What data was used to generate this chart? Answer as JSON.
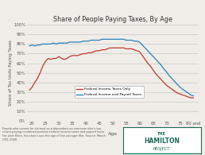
{
  "title": "Share of People Paying Taxes, By Age",
  "xlabel": "Age",
  "ylabel": "Share of Tax Units Paying Taxes",
  "x_ticks": [
    20,
    25,
    30,
    35,
    40,
    45,
    50,
    55,
    60,
    65,
    70,
    75,
    80
  ],
  "x_tick_labels": [
    "20",
    "25",
    "30",
    "35",
    "40",
    "45",
    "50",
    "55",
    "60",
    "65",
    "70",
    "75",
    "80 and\nolder"
  ],
  "ylim": [
    0,
    100
  ],
  "y_ticks": [
    0,
    10,
    20,
    30,
    40,
    50,
    60,
    70,
    80,
    90,
    100
  ],
  "y_tick_labels": [
    "0%",
    "10%",
    "20%",
    "30%",
    "40%",
    "50%",
    "60%",
    "70%",
    "80%",
    "90%",
    "100%"
  ],
  "federal_income_x": [
    19,
    20,
    21,
    22,
    23,
    24,
    25,
    26,
    27,
    28,
    29,
    30,
    31,
    32,
    33,
    34,
    35,
    36,
    37,
    38,
    39,
    40,
    41,
    42,
    43,
    44,
    45,
    46,
    47,
    48,
    49,
    50,
    51,
    52,
    53,
    54,
    55,
    56,
    57,
    58,
    59,
    60,
    61,
    62,
    63,
    64,
    65,
    66,
    67,
    68,
    69,
    70,
    71,
    72,
    73,
    74,
    75,
    76,
    77,
    78,
    79,
    80
  ],
  "federal_income_y": [
    32,
    35,
    40,
    44,
    50,
    57,
    62,
    65,
    64,
    65,
    65,
    67,
    65,
    64,
    65,
    67,
    68,
    68,
    68,
    69,
    70,
    70,
    71,
    71,
    72,
    73,
    73,
    74,
    74,
    75,
    76,
    76,
    76,
    76,
    76,
    76,
    75,
    75,
    75,
    74,
    73,
    72,
    68,
    64,
    60,
    57,
    53,
    49,
    46,
    43,
    40,
    37,
    35,
    33,
    31,
    29,
    28,
    27,
    26,
    25,
    24,
    24
  ],
  "federal_payroll_x": [
    19,
    20,
    21,
    22,
    23,
    24,
    25,
    26,
    27,
    28,
    29,
    30,
    31,
    32,
    33,
    34,
    35,
    36,
    37,
    38,
    39,
    40,
    41,
    42,
    43,
    44,
    45,
    46,
    47,
    48,
    49,
    50,
    51,
    52,
    53,
    54,
    55,
    56,
    57,
    58,
    59,
    60,
    61,
    62,
    63,
    64,
    65,
    66,
    67,
    68,
    69,
    70,
    71,
    72,
    73,
    74,
    75,
    76,
    77,
    78,
    79,
    80
  ],
  "federal_payroll_y": [
    78,
    79,
    78,
    79,
    79,
    80,
    80,
    80,
    80,
    81,
    80,
    81,
    81,
    81,
    81,
    82,
    82,
    82,
    82,
    82,
    83,
    83,
    83,
    84,
    84,
    84,
    84,
    85,
    85,
    85,
    85,
    85,
    85,
    85,
    85,
    85,
    84,
    84,
    84,
    83,
    83,
    82,
    79,
    76,
    73,
    70,
    67,
    64,
    61,
    58,
    54,
    51,
    47,
    44,
    41,
    38,
    35,
    33,
    31,
    29,
    27,
    26
  ],
  "income_color": "#c0392b",
  "payroll_color": "#2980b9",
  "bg_color": "#f0ede8",
  "plot_bg_color": "#f0ede8",
  "grid_color": "#c8c8c8",
  "footnote": "People who cannot be claimed as a dependent on someone else's tax\nreturn paying combined positive federal income taxes and payroll taxes.\nFor joint filers, the chart uses the age of the younger filer. Source: March\nCPS, 2008.",
  "legend_income": "Federal Income Taxes Only",
  "legend_payroll": "Federal Income and Payroll Taxes",
  "hamilton_color": "#1a6b55"
}
